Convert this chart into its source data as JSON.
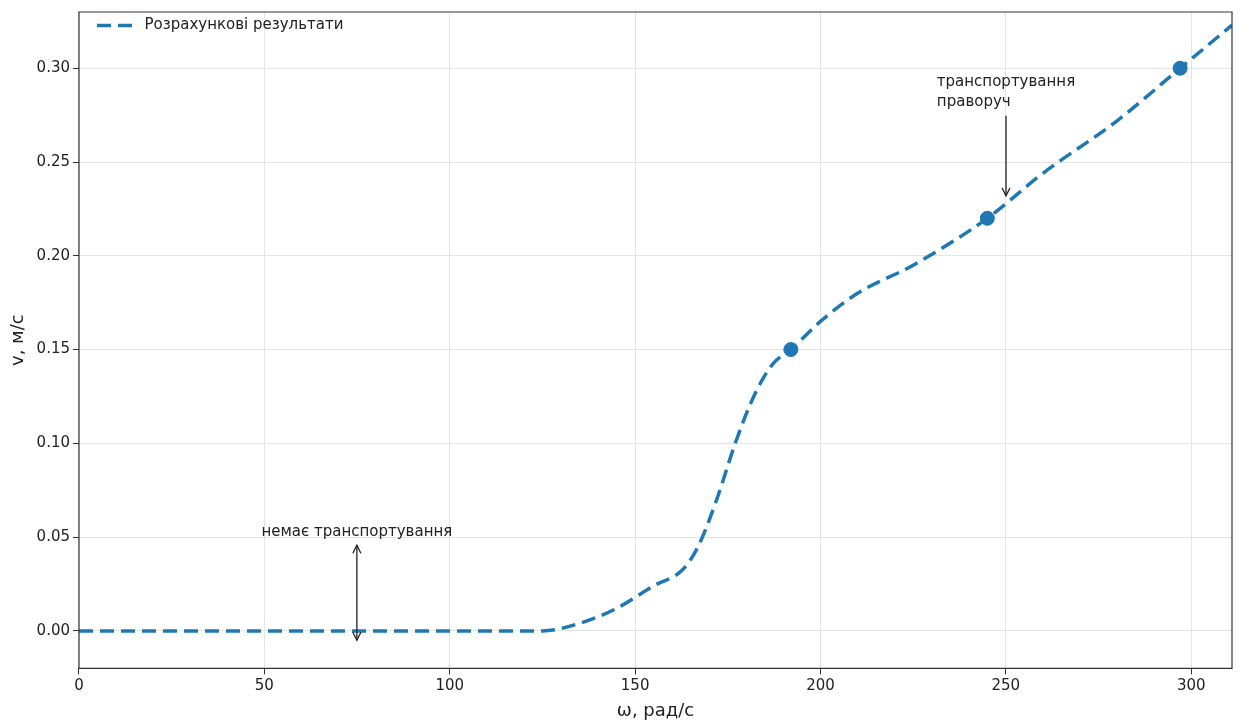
{
  "chart_data": {
    "type": "line",
    "xlabel": "ω, рад/с",
    "ylabel": "v, м/с",
    "series": [
      {
        "name": "Розрахункові результати",
        "color": "#1f77b4",
        "line_style": "dashed",
        "marker": "none",
        "x": [
          0,
          125,
          135,
          145,
          155,
          163,
          167,
          172,
          177,
          182,
          187,
          192,
          200,
          210,
          225,
          245,
          260,
          280,
          297,
          311
        ],
        "values": [
          0,
          0,
          0.004,
          0.012,
          0.024,
          0.033,
          0.045,
          0.07,
          0.1,
          0.125,
          0.142,
          0.15,
          0.165,
          0.18,
          0.195,
          0.22,
          0.244,
          0.272,
          0.3,
          0.323
        ]
      },
      {
        "type": "scatter",
        "color": "#1f77b4",
        "marker": "circle",
        "x": [
          192,
          245,
          297
        ],
        "values": [
          0.15,
          0.22,
          0.3
        ]
      }
    ],
    "xlim": [
      0,
      311
    ],
    "xticks": [
      0,
      50,
      100,
      150,
      200,
      250,
      300
    ],
    "ylim": [
      -0.02,
      0.33
    ],
    "yticks": [
      {
        "value": 0,
        "label": "0.00"
      },
      {
        "value": 0.05,
        "label": "0.05"
      },
      {
        "value": 0.1,
        "label": "0.10"
      },
      {
        "value": 0.15,
        "label": "0.15"
      },
      {
        "value": 0.2,
        "label": "0.20"
      },
      {
        "value": 0.25,
        "label": "0.25"
      },
      {
        "value": 0.3,
        "label": "0.30"
      }
    ],
    "grid": true,
    "legend": "top left",
    "annotations": [
      "немає транспортування",
      "транспортування\nправоруч"
    ]
  }
}
